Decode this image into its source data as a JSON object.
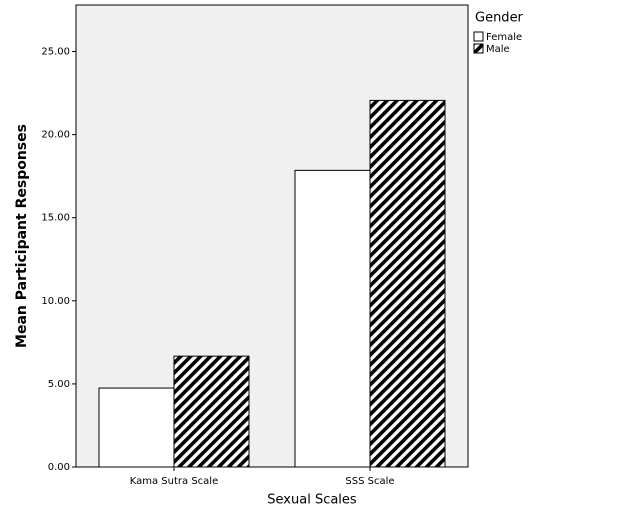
{
  "chart_data": {
    "type": "bar",
    "x_label": "Sexual Scales",
    "y_label": "Mean Participant Responses",
    "legend_title": "Gender",
    "categories": [
      "Kama Sutra Scale",
      "SSS Scale"
    ],
    "series": [
      {
        "name": "Female",
        "color": "#ffffff",
        "pattern": "solid",
        "values": [
          4.75,
          17.85
        ]
      },
      {
        "name": "Male",
        "color": "#000000",
        "pattern": "diagonal-stripes",
        "values": [
          6.67,
          22.06
        ]
      }
    ],
    "ylim": [
      0,
      27.8
    ],
    "yticks": [
      {
        "value": 0,
        "label": "0.00"
      },
      {
        "value": 5,
        "label": "5.00"
      },
      {
        "value": 10,
        "label": "10.00"
      },
      {
        "value": 15,
        "label": "15.00"
      },
      {
        "value": 20,
        "label": "20.00"
      },
      {
        "value": 25,
        "label": "25.00"
      }
    ],
    "legend_position": "top-right"
  }
}
